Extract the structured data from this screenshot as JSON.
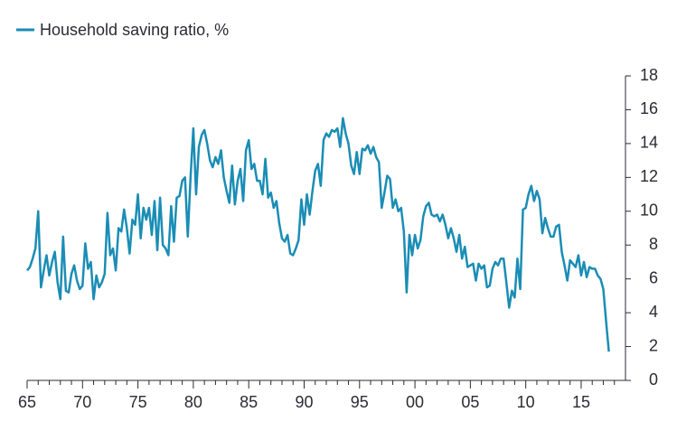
{
  "chart_data": {
    "type": "line",
    "series": [
      {
        "name": "Household saving ratio, %",
        "color": "#1a8db5",
        "values": [
          6.5,
          6.7,
          7.2,
          7.8,
          10.0,
          5.5,
          6.5,
          7.4,
          6.2,
          7.0,
          7.6,
          5.8,
          4.8,
          8.5,
          5.3,
          5.2,
          6.3,
          6.8,
          5.9,
          5.4,
          5.6,
          8.1,
          6.6,
          7.0,
          4.8,
          6.2,
          5.5,
          5.8,
          6.3,
          9.9,
          7.4,
          7.8,
          6.5,
          9.0,
          8.8,
          10.1,
          9.0,
          7.5,
          9.5,
          9.2,
          11.0,
          8.4,
          10.2,
          9.5,
          10.2,
          8.6,
          10.6,
          7.7,
          10.8,
          8.0,
          7.8,
          7.4,
          10.3,
          8.2,
          10.8,
          10.9,
          11.8,
          12.0,
          8.5,
          12.0,
          14.9,
          11.0,
          13.8,
          14.5,
          14.8,
          14.0,
          13.0,
          12.6,
          13.2,
          12.8,
          13.6,
          12.0,
          11.2,
          10.5,
          12.7,
          10.4,
          11.8,
          12.5,
          10.6,
          13.6,
          14.2,
          12.5,
          12.8,
          11.8,
          11.8,
          11.0,
          13.1,
          10.8,
          11.1,
          10.2,
          10.6,
          9.3,
          8.4,
          8.2,
          8.6,
          7.5,
          7.4,
          7.8,
          8.3,
          10.7,
          9.2,
          11.0,
          9.8,
          11.2,
          12.4,
          12.8,
          11.5,
          14.2,
          14.6,
          14.4,
          14.8,
          14.7,
          14.9,
          13.8,
          15.5,
          14.6,
          14.0,
          12.7,
          12.2,
          13.5,
          12.2,
          13.7,
          13.6,
          13.9,
          13.4,
          13.8,
          13.2,
          12.9,
          10.2,
          11.1,
          12.1,
          11.9,
          10.2,
          10.7,
          10.0,
          10.2,
          8.8,
          5.2,
          8.6,
          7.4,
          8.6,
          7.8,
          8.3,
          9.7,
          10.3,
          10.5,
          9.8,
          9.7,
          9.8,
          9.4,
          9.8,
          9.2,
          8.4,
          9.0,
          8.4,
          7.6,
          8.6,
          7.2,
          7.9,
          6.7,
          6.8,
          6.9,
          5.9,
          6.9,
          6.6,
          6.8,
          5.5,
          5.6,
          6.6,
          7.0,
          6.8,
          7.2,
          7.2,
          5.8,
          4.3,
          5.3,
          4.9,
          7.2,
          5.4,
          10.1,
          10.2,
          11.0,
          11.5,
          10.6,
          11.2,
          10.7,
          8.7,
          9.6,
          9.0,
          8.5,
          8.5,
          9.1,
          9.2,
          7.6,
          6.8,
          5.9,
          7.1,
          6.9,
          6.7,
          7.4,
          6.2,
          7.0,
          6.1,
          6.7,
          6.6,
          6.6,
          6.2,
          6.0,
          5.4,
          3.5,
          1.7
        ]
      }
    ],
    "x": [
      1965,
      1965.25,
      1965.5,
      1965.75,
      1966,
      1966.25,
      1966.5,
      1966.75,
      1967,
      1967.25,
      1967.5,
      1967.75,
      1968,
      1968.25,
      1968.5,
      1968.75,
      1969,
      1969.25,
      1969.5,
      1969.75,
      1970,
      1970.25,
      1970.5,
      1970.75,
      1971,
      1971.25,
      1971.5,
      1971.75,
      1972,
      1972.25,
      1972.5,
      1972.75,
      1973,
      1973.25,
      1973.5,
      1973.75,
      1974,
      1974.25,
      1974.5,
      1974.75,
      1975,
      1975.25,
      1975.5,
      1975.75,
      1976,
      1976.25,
      1976.5,
      1976.75,
      1977,
      1977.25,
      1977.5,
      1977.75,
      1978,
      1978.25,
      1978.5,
      1978.75,
      1979,
      1979.25,
      1979.5,
      1979.75,
      1980,
      1980.25,
      1980.5,
      1980.75,
      1981,
      1981.25,
      1981.5,
      1981.75,
      1982,
      1982.25,
      1982.5,
      1982.75,
      1983,
      1983.25,
      1983.5,
      1983.75,
      1984,
      1984.25,
      1984.5,
      1984.75,
      1985,
      1985.25,
      1985.5,
      1985.75,
      1986,
      1986.25,
      1986.5,
      1986.75,
      1987,
      1987.25,
      1987.5,
      1987.75,
      1988,
      1988.25,
      1988.5,
      1988.75,
      1989,
      1989.25,
      1989.5,
      1989.75,
      1990,
      1990.25,
      1990.5,
      1990.75,
      1991,
      1991.25,
      1991.5,
      1991.75,
      1992,
      1992.25,
      1992.5,
      1992.75,
      1993,
      1993.25,
      1993.5,
      1993.75,
      1994,
      1994.25,
      1994.5,
      1994.75,
      1995,
      1995.25,
      1995.5,
      1995.75,
      1996,
      1996.25,
      1996.5,
      1996.75,
      1997,
      1997.25,
      1997.5,
      1997.75,
      1998,
      1998.25,
      1998.5,
      1998.75,
      1999,
      1999.25,
      1999.5,
      1999.75,
      2000,
      2000.25,
      2000.5,
      2000.75,
      2001,
      2001.25,
      2001.5,
      2001.75,
      2002,
      2002.25,
      2002.5,
      2002.75,
      2003,
      2003.25,
      2003.5,
      2003.75,
      2004,
      2004.25,
      2004.5,
      2004.75,
      2005,
      2005.25,
      2005.5,
      2005.75,
      2006,
      2006.25,
      2006.5,
      2006.75,
      2007,
      2007.25,
      2007.5,
      2007.75,
      2008,
      2008.25,
      2008.5,
      2008.75,
      2009,
      2009.25,
      2009.5,
      2009.75,
      2010,
      2010.25,
      2010.5,
      2010.75,
      2011,
      2011.25,
      2011.5,
      2011.75,
      2012,
      2012.25,
      2012.5,
      2012.75,
      2013,
      2013.25,
      2013.5,
      2013.75,
      2014,
      2014.25,
      2014.5,
      2014.75,
      2015,
      2015.25,
      2015.5,
      2015.75,
      2016,
      2016.25,
      2016.5,
      2016.75,
      2017,
      2017.25,
      2017.5
    ],
    "xlim": [
      1965,
      2019
    ],
    "xticks": [
      {
        "value": 1965,
        "label": "65"
      },
      {
        "value": 1970,
        "label": "70"
      },
      {
        "value": 1975,
        "label": "75"
      },
      {
        "value": 1980,
        "label": "80"
      },
      {
        "value": 1985,
        "label": "85"
      },
      {
        "value": 1990,
        "label": "90"
      },
      {
        "value": 1995,
        "label": "95"
      },
      {
        "value": 2000,
        "label": "00"
      },
      {
        "value": 2005,
        "label": "05"
      },
      {
        "value": 2010,
        "label": "10"
      },
      {
        "value": 2015,
        "label": "15"
      }
    ],
    "xminorticks": [
      1966,
      1967,
      1968,
      1969,
      1971,
      1972,
      1973,
      1974,
      1976,
      1977,
      1978,
      1979,
      1981,
      1982,
      1983,
      1984,
      1986,
      1987,
      1988,
      1989,
      1991,
      1992,
      1993,
      1994,
      1996,
      1997,
      1998,
      1999,
      2001,
      2002,
      2003,
      2004,
      2006,
      2007,
      2008,
      2009,
      2011,
      2012,
      2013,
      2014,
      2016,
      2017,
      2018
    ],
    "ylim": [
      0,
      18
    ],
    "yticks": [
      0,
      2,
      4,
      6,
      8,
      10,
      12,
      14,
      16,
      18
    ],
    "y_axis_side": "right",
    "legend": "top-left"
  }
}
